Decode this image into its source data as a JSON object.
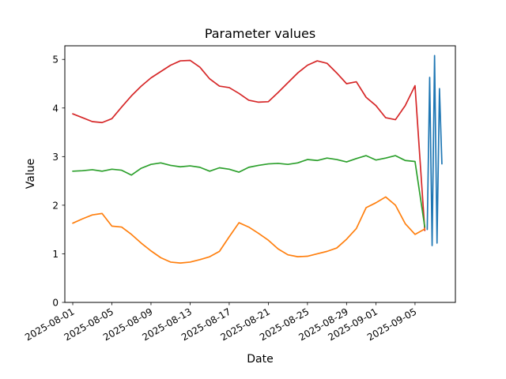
{
  "figure": {
    "background": "#ffffff",
    "title": "Parameter values",
    "xlabel": "Date",
    "ylabel": "Value"
  },
  "chart_data": {
    "type": "line",
    "title": "Parameter values",
    "xlabel": "Date",
    "ylabel": "Value",
    "grid": false,
    "legend": "none",
    "ylim": [
      0,
      5.28
    ],
    "yticks": [
      0,
      1,
      2,
      3,
      4,
      5
    ],
    "x_epoch": "2025-08-01",
    "xlim_days": [
      -0.81,
      39.13
    ],
    "xtick_labels": [
      "2025-08-01",
      "2025-08-05",
      "2025-08-09",
      "2025-08-13",
      "2025-08-17",
      "2025-08-21",
      "2025-08-25",
      "2025-08-29",
      "2025-09-01",
      "2025-09-05"
    ],
    "xtick_rotation_deg": -30,
    "dates_daily": [
      "2025-08-01",
      "2025-08-02",
      "2025-08-03",
      "2025-08-04",
      "2025-08-05",
      "2025-08-06",
      "2025-08-07",
      "2025-08-08",
      "2025-08-09",
      "2025-08-10",
      "2025-08-11",
      "2025-08-12",
      "2025-08-13",
      "2025-08-14",
      "2025-08-15",
      "2025-08-16",
      "2025-08-17",
      "2025-08-18",
      "2025-08-19",
      "2025-08-20",
      "2025-08-21",
      "2025-08-22",
      "2025-08-23",
      "2025-08-24",
      "2025-08-25",
      "2025-08-26",
      "2025-08-27",
      "2025-08-28",
      "2025-08-29",
      "2025-08-30",
      "2025-08-31",
      "2025-09-01",
      "2025-09-02",
      "2025-09-03",
      "2025-09-04",
      "2025-09-05",
      "2025-09-06"
    ],
    "series": [
      {
        "name": "red-series",
        "color": "#d62728",
        "x_ref": "dates_daily",
        "values": [
          3.88,
          3.8,
          3.72,
          3.7,
          3.78,
          4.02,
          4.25,
          4.45,
          4.62,
          4.75,
          4.88,
          4.97,
          4.98,
          4.84,
          4.6,
          4.45,
          4.42,
          4.3,
          4.16,
          4.12,
          4.13,
          4.32,
          4.52,
          4.72,
          4.88,
          4.97,
          4.92,
          4.72,
          4.5,
          4.54,
          4.22,
          4.05,
          3.8,
          3.76,
          4.05,
          4.46,
          1.48
        ]
      },
      {
        "name": "green-series",
        "color": "#2ca02c",
        "x_ref": "dates_daily",
        "values": [
          2.7,
          2.71,
          2.73,
          2.7,
          2.74,
          2.72,
          2.62,
          2.76,
          2.84,
          2.87,
          2.82,
          2.79,
          2.81,
          2.78,
          2.7,
          2.77,
          2.74,
          2.68,
          2.78,
          2.82,
          2.85,
          2.86,
          2.84,
          2.87,
          2.94,
          2.92,
          2.97,
          2.94,
          2.89,
          2.96,
          3.02,
          2.93,
          2.97,
          3.02,
          2.92,
          2.9,
          1.55
        ]
      },
      {
        "name": "orange-series",
        "color": "#ff7f0e",
        "x_ref": "dates_daily",
        "values": [
          1.63,
          1.72,
          1.8,
          1.83,
          1.57,
          1.55,
          1.4,
          1.22,
          1.06,
          0.92,
          0.83,
          0.81,
          0.83,
          0.88,
          0.94,
          1.05,
          1.35,
          1.64,
          1.55,
          1.42,
          1.28,
          1.1,
          0.98,
          0.94,
          0.95,
          1.0,
          1.05,
          1.12,
          1.3,
          1.52,
          1.95,
          2.05,
          2.17,
          2.0,
          1.62,
          1.4,
          1.51
        ]
      },
      {
        "name": "blue-series",
        "color": "#1f77b4",
        "x": [
          "2025-09-06T06:00",
          "2025-09-06T12:00",
          "2025-09-06T18:00",
          "2025-09-07T00:00",
          "2025-09-07T06:00",
          "2025-09-07T12:00",
          "2025-09-07T18:00"
        ],
        "values": [
          1.5,
          4.63,
          1.17,
          5.08,
          1.22,
          4.4,
          2.85
        ]
      }
    ]
  }
}
